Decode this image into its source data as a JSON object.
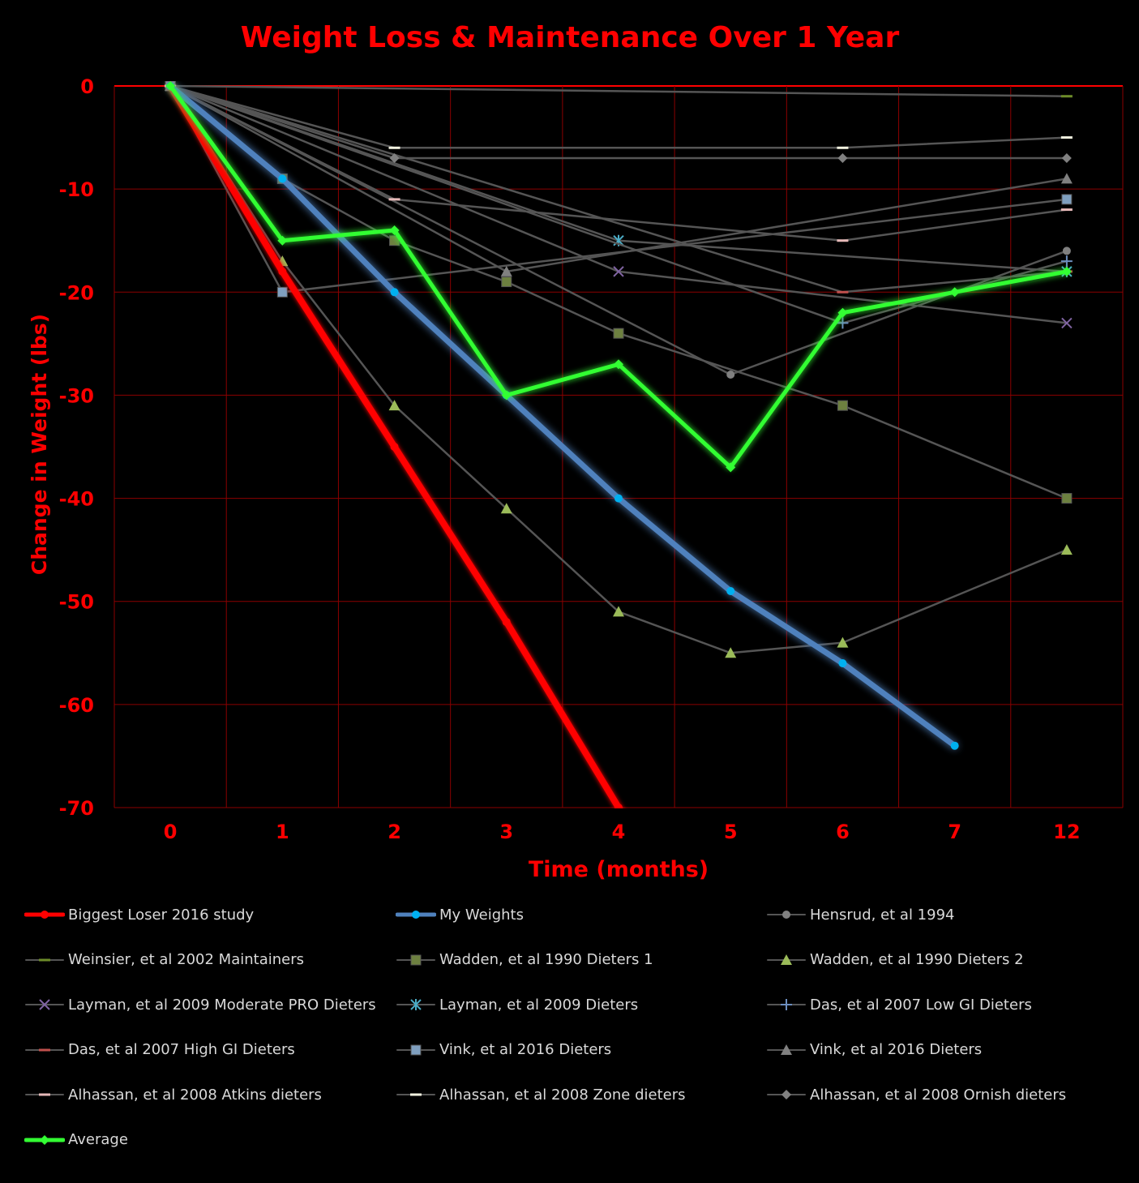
{
  "chart_data": {
    "type": "line",
    "title": "Weight Loss & Maintenance Over 1 Year",
    "xlabel": "Time (months)",
    "ylabel": "Change in Weight  (lbs)",
    "categories": [
      "0",
      "1",
      "2",
      "3",
      "4",
      "5",
      "6",
      "7",
      "12"
    ],
    "ylim": [
      -70,
      0
    ],
    "yticks": [
      "0",
      "-10",
      "-20",
      "-30",
      "-40",
      "-50",
      "-60",
      "-70"
    ],
    "grid": true,
    "legend_position": "bottom",
    "colors": {
      "background": "#000000",
      "text": "#ff0000",
      "grid": "#8b0000",
      "legend_text": "#d9d9d9"
    },
    "series": [
      {
        "name": "Hensrud, et al 1994",
        "color": "#555555",
        "marker": "circle",
        "values": [
          0,
          null,
          null,
          null,
          null,
          -28,
          null,
          null,
          -16
        ]
      },
      {
        "name": "Weinsier, et al 2002 Maintainers",
        "color": "#555555",
        "marker": "dash-green",
        "values": [
          0,
          null,
          null,
          null,
          null,
          null,
          null,
          null,
          -1
        ]
      },
      {
        "name": "Wadden, et al 1990 Dieters 1",
        "color": "#555555",
        "marker": "square-green",
        "values": [
          0,
          -9,
          -15,
          -19,
          -24,
          null,
          -31,
          null,
          -40
        ]
      },
      {
        "name": "Wadden, et al 1990 Dieters 2",
        "color": "#555555",
        "marker": "triangle-green",
        "values": [
          0,
          -17,
          -31,
          -41,
          -51,
          -55,
          -54,
          null,
          -45
        ]
      },
      {
        "name": "Layman, et al 2009 Moderate PRO Dieters",
        "color": "#555555",
        "marker": "x",
        "values": [
          0,
          null,
          null,
          null,
          -18,
          null,
          null,
          null,
          -23
        ]
      },
      {
        "name": "Layman, et al 2009 Dieters",
        "color": "#555555",
        "marker": "star",
        "values": [
          0,
          null,
          null,
          null,
          -15,
          null,
          null,
          null,
          -18
        ]
      },
      {
        "name": "Das, et al 2007 Low GI Dieters",
        "color": "#555555",
        "marker": "plus",
        "values": [
          0,
          null,
          null,
          null,
          null,
          null,
          -23,
          null,
          -17
        ]
      },
      {
        "name": "Das, et al 2007 High GI Dieters",
        "color": "#555555",
        "marker": "dash-pink",
        "values": [
          0,
          null,
          null,
          null,
          null,
          null,
          -20,
          null,
          -18
        ]
      },
      {
        "name": "Vink, et al 2016 Dieters",
        "color": "#555555",
        "marker": "square-blue",
        "values": [
          0,
          -20,
          null,
          null,
          null,
          null,
          null,
          null,
          -11
        ]
      },
      {
        "name": "Vink, et al 2016 Dieters",
        "color": "#555555",
        "marker": "triangle-gray",
        "values": [
          0,
          null,
          null,
          -18,
          null,
          null,
          null,
          null,
          -9
        ]
      },
      {
        "name": "Alhassan, et al 2008 Atkins dieters",
        "color": "#555555",
        "marker": "dash-light",
        "values": [
          0,
          null,
          -11,
          null,
          null,
          null,
          -15,
          null,
          -12
        ]
      },
      {
        "name": "Alhassan, et al 2008 Zone dieters",
        "color": "#555555",
        "marker": "dash-white",
        "values": [
          0,
          null,
          -6,
          null,
          null,
          null,
          -6,
          null,
          -5
        ]
      },
      {
        "name": "Alhassan, et al 2008 Ornish dieters",
        "color": "#555555",
        "marker": "diamond",
        "values": [
          0,
          null,
          -7,
          null,
          null,
          null,
          -7,
          null,
          -7
        ]
      },
      {
        "name": "Biggest Loser 2016 study",
        "color": "#ff0000",
        "marker": "circle",
        "values": [
          0,
          -18,
          -35,
          -52,
          -70,
          null,
          null,
          null,
          null
        ]
      },
      {
        "name": "My Weights",
        "color": "#4f81bd",
        "marker": "circle",
        "values": [
          0,
          -9,
          -20,
          -30,
          -40,
          -49,
          -56,
          -64,
          null
        ]
      },
      {
        "name": "Average",
        "color": "#33ff33",
        "marker": "diamond",
        "values": [
          0,
          -15,
          -14,
          -30,
          -27,
          -37,
          -22,
          -20,
          -18
        ]
      }
    ]
  },
  "legend": [
    {
      "label": "Biggest Loser 2016 study",
      "line": "#ff0000",
      "width": 5,
      "marker": "circle",
      "mcolor": "#ff0000"
    },
    {
      "label": "My Weights",
      "line": "#4f81bd",
      "width": 5,
      "marker": "circle",
      "mcolor": "#00b0f0"
    },
    {
      "label": "Hensrud, et al 1994",
      "line": "#555555",
      "width": 2,
      "marker": "circle",
      "mcolor": "#808080"
    },
    {
      "label": "Weinsier, et al 2002 Maintainers",
      "line": "#555555",
      "width": 2,
      "marker": "dash",
      "mcolor": "#6d8c2a"
    },
    {
      "label": "Wadden, et al 1990 Dieters 1",
      "line": "#555555",
      "width": 2,
      "marker": "square",
      "mcolor": "#6d8040"
    },
    {
      "label": "Wadden, et al 1990 Dieters 2",
      "line": "#555555",
      "width": 2,
      "marker": "triangle",
      "mcolor": "#9bbb59"
    },
    {
      "label": "Layman, et al 2009 Moderate PRO Dieters",
      "line": "#555555",
      "width": 2,
      "marker": "x",
      "mcolor": "#8064a2"
    },
    {
      "label": "Layman, et al 2009 Dieters",
      "line": "#555555",
      "width": 2,
      "marker": "star",
      "mcolor": "#4bacc6"
    },
    {
      "label": "Das, et al 2007 Low GI Dieters",
      "line": "#555555",
      "width": 2,
      "marker": "plus",
      "mcolor": "#6c8ebf"
    },
    {
      "label": "Das, et al 2007 High GI Dieters",
      "line": "#555555",
      "width": 2,
      "marker": "dash",
      "mcolor": "#c0504d"
    },
    {
      "label": "Vink, et al 2016 Dieters",
      "line": "#555555",
      "width": 2,
      "marker": "square",
      "mcolor": "#7f9fbf"
    },
    {
      "label": "Vink, et al 2016 Dieters",
      "line": "#555555",
      "width": 2,
      "marker": "triangle",
      "mcolor": "#808080"
    },
    {
      "label": "Alhassan, et al 2008 Atkins dieters",
      "line": "#555555",
      "width": 2,
      "marker": "dash",
      "mcolor": "#e6b9b8"
    },
    {
      "label": "Alhassan, et al 2008 Zone dieters",
      "line": "#555555",
      "width": 2,
      "marker": "dash",
      "mcolor": "#f2f2e0"
    },
    {
      "label": "Alhassan, et al 2008 Ornish dieters",
      "line": "#555555",
      "width": 2,
      "marker": "diamond",
      "mcolor": "#808080"
    },
    {
      "label": "Average",
      "line": "#33ff33",
      "width": 5,
      "marker": "diamond",
      "mcolor": "#33ff33"
    }
  ]
}
